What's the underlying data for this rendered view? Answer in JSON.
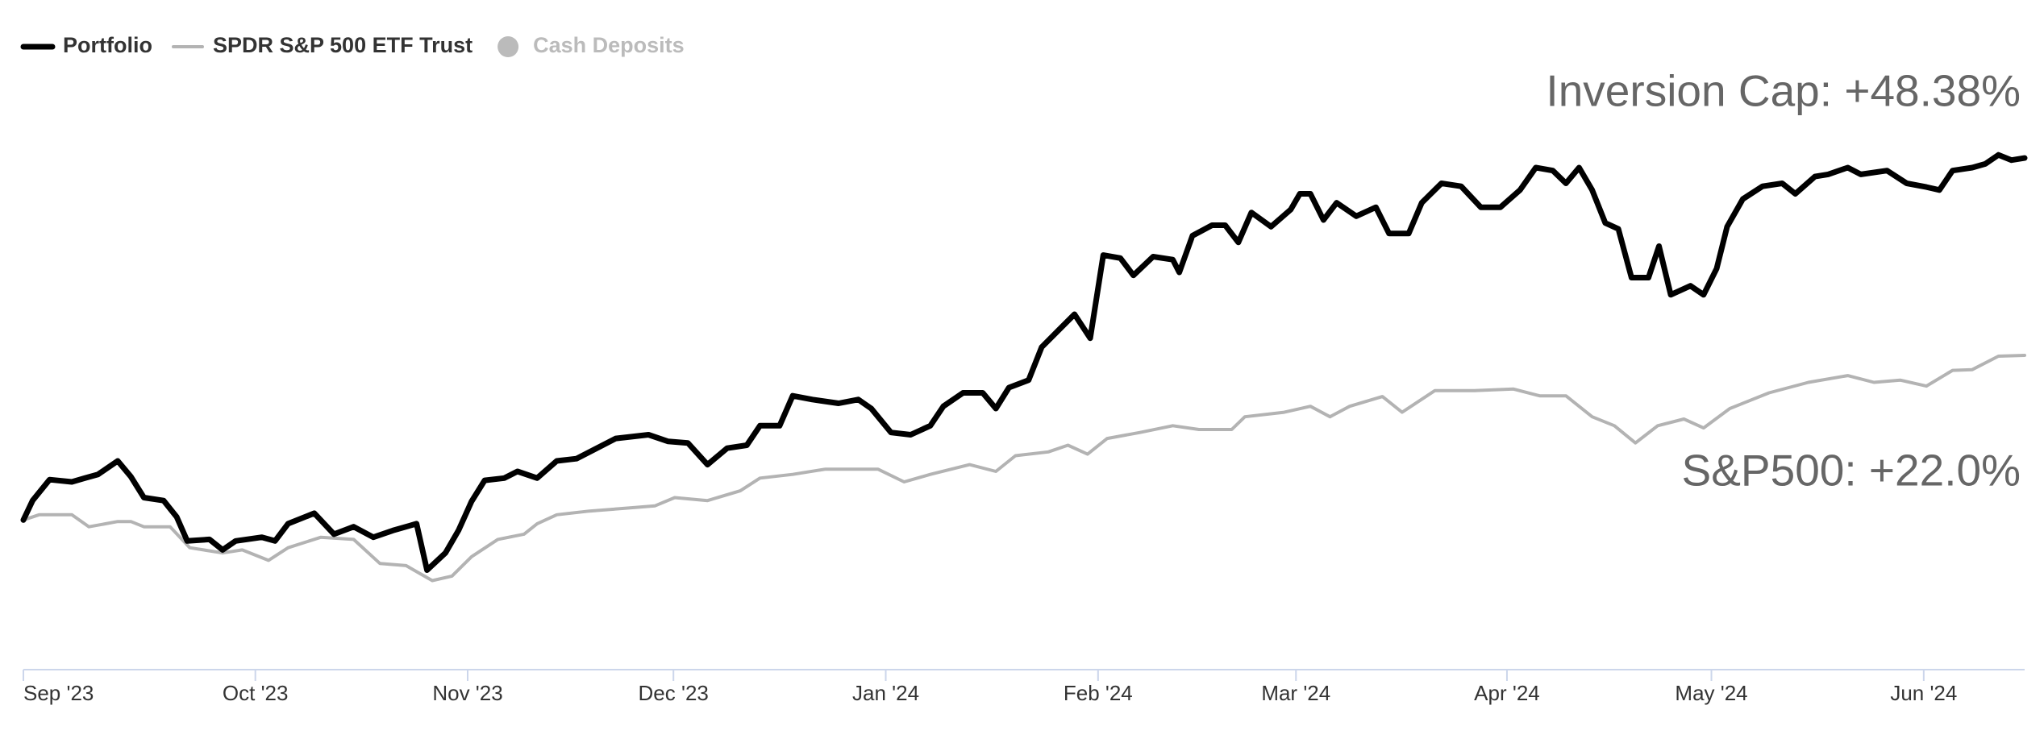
{
  "chart_data": {
    "type": "line",
    "annotations": [
      "Inversion Cap: +48.38%",
      "S&P500: +22.0%"
    ],
    "xlim": [
      0,
      305.4
    ],
    "xticks": [
      {
        "value": 0,
        "label": "Sep '23"
      },
      {
        "value": 35.4,
        "label": "Oct '23"
      },
      {
        "value": 67.8,
        "label": "Nov '23"
      },
      {
        "value": 99.2,
        "label": "Dec '23"
      },
      {
        "value": 131.6,
        "label": "Jan '24"
      },
      {
        "value": 164,
        "label": "Feb '24"
      },
      {
        "value": 194.2,
        "label": "Mar '24"
      },
      {
        "value": 226.4,
        "label": "Apr '24"
      },
      {
        "value": 257.6,
        "label": "May '24"
      },
      {
        "value": 290,
        "label": "Jun '24"
      }
    ],
    "ylim": [
      -20,
      52
    ],
    "series": [
      {
        "name": "Portfolio",
        "color": "#000000",
        "x": [
          0,
          1.4,
          4,
          7.4,
          9.4,
          11.4,
          14.4,
          16.4,
          18.4,
          21.4,
          23.4,
          25,
          28.4,
          30.4,
          32.4,
          36.4,
          38.4,
          40.4,
          44.4,
          47.4,
          50.4,
          53.4,
          56.4,
          60,
          61.6,
          64.4,
          66.4,
          68.4,
          70.4,
          73.4,
          75.4,
          78.4,
          81.4,
          84.4,
          88.4,
          90.4,
          95.4,
          98.4,
          101.4,
          104.4,
          107.4,
          110.4,
          112.4,
          115.4,
          117.4,
          120.4,
          124.4,
          127.4,
          129.4,
          132.4,
          135.4,
          138.4,
          140.4,
          143.4,
          146.4,
          148.4,
          150.4,
          153.4,
          155.4,
          158,
          160.4,
          162.8,
          164.8,
          167.4,
          169.4,
          172.4,
          175.4,
          176.4,
          178.4,
          181.4,
          183.4,
          185.4,
          187.4,
          190.4,
          193.4,
          194.8,
          196.4,
          198.4,
          200.4,
          203.4,
          206.4,
          208.4,
          211.4,
          213.4,
          216.4,
          219.4,
          222.4,
          225.4,
          228.4,
          230.8,
          233.4,
          235.4,
          237.4,
          239.4,
          241.4,
          243.4,
          245.4,
          248,
          249.6,
          251.4,
          254.4,
          256.4,
          258.4,
          260,
          262.4,
          265.4,
          268.4,
          270.4,
          273.4,
          275.4,
          278.4,
          280.4,
          284.4,
          287.4,
          290.4,
          292.4,
          294.4,
          297.4,
          299.4,
          301.4,
          303.4,
          305.4
        ],
        "values": [
          0,
          2.6,
          5.4,
          5.1,
          5.6,
          6.1,
          7.9,
          5.8,
          3.0,
          2.6,
          0.4,
          -2.8,
          -2.6,
          -4.0,
          -2.8,
          -2.3,
          -2.8,
          -0.5,
          0.9,
          -1.9,
          -0.9,
          -2.3,
          -1.4,
          -0.5,
          -6.7,
          -4.4,
          -1.4,
          2.5,
          5.3,
          5.6,
          6.5,
          5.6,
          7.9,
          8.2,
          10.0,
          10.9,
          11.4,
          10.5,
          10.3,
          7.4,
          9.6,
          10.0,
          12.6,
          12.6,
          16.6,
          16.1,
          15.6,
          16.1,
          14.9,
          11.7,
          11.4,
          12.6,
          15.2,
          17.0,
          17.0,
          14.9,
          17.7,
          18.7,
          23.1,
          25.4,
          27.5,
          24.3,
          35.4,
          35.0,
          32.7,
          35.2,
          34.8,
          33.1,
          38.0,
          39.4,
          39.4,
          37.1,
          41.1,
          39.2,
          41.5,
          43.6,
          43.6,
          40.1,
          42.4,
          40.6,
          41.8,
          38.3,
          38.3,
          42.4,
          45.0,
          44.6,
          41.8,
          41.8,
          44.1,
          47.1,
          46.7,
          45.0,
          47.1,
          44.1,
          39.7,
          38.9,
          32.4,
          32.4,
          36.6,
          30.1,
          31.3,
          30.1,
          33.6,
          39.2,
          42.9,
          44.6,
          45.0,
          43.6,
          45.9,
          46.2,
          47.1,
          46.2,
          46.7,
          45.0,
          44.5,
          44.1,
          46.7,
          47.1,
          47.6,
          48.8,
          48.1,
          48.38
        ]
      },
      {
        "name": "SPDR S&P 500 ETF Trust",
        "color": "#b3b3b3",
        "x": [
          0,
          2.4,
          7.4,
          10,
          14.4,
          16.4,
          18.4,
          22.4,
          25.4,
          30.4,
          33.4,
          37.4,
          40.4,
          45.4,
          50.4,
          54.4,
          58.4,
          62.4,
          65.4,
          68.4,
          72.4,
          76.4,
          78.4,
          81.4,
          86.4,
          92.4,
          96.4,
          99.4,
          104.4,
          109.4,
          112.4,
          117.4,
          122.4,
          130.4,
          134.4,
          138.4,
          144.4,
          148.4,
          151.4,
          156.4,
          159.4,
          162.4,
          165.4,
          170.4,
          175.4,
          179.4,
          184.4,
          186.4,
          192.4,
          196.4,
          199.4,
          202.4,
          207.4,
          210.4,
          215.4,
          221.4,
          227.4,
          231.4,
          235.4,
          239.4,
          242.8,
          246,
          249.4,
          253.4,
          256.4,
          260.4,
          266.4,
          272.4,
          278.4,
          282.4,
          286.4,
          290.4,
          294.4,
          297.4,
          301.4,
          305.4
        ],
        "values": [
          0,
          0.7,
          0.7,
          -0.9,
          -0.2,
          -0.2,
          -0.9,
          -0.9,
          -3.7,
          -4.4,
          -4.0,
          -5.4,
          -3.7,
          -2.3,
          -2.6,
          -5.8,
          -6.1,
          -8.1,
          -7.5,
          -4.9,
          -2.6,
          -1.9,
          -0.5,
          0.7,
          1.2,
          1.6,
          1.9,
          3.0,
          2.6,
          3.9,
          5.6,
          6.1,
          6.8,
          6.8,
          5.1,
          6.1,
          7.4,
          6.5,
          8.6,
          9.1,
          10.0,
          8.8,
          10.9,
          11.7,
          12.6,
          12.1,
          12.1,
          13.8,
          14.4,
          15.2,
          13.8,
          15.2,
          16.5,
          14.4,
          17.3,
          17.3,
          17.5,
          16.6,
          16.6,
          13.8,
          12.6,
          10.3,
          12.6,
          13.5,
          12.3,
          14.9,
          17.0,
          18.4,
          19.3,
          18.4,
          18.7,
          17.9,
          20.0,
          20.1,
          21.9,
          22.0
        ]
      },
      {
        "name": "Cash Deposits",
        "color": "#bbbbbb",
        "visible": false
      }
    ]
  }
}
